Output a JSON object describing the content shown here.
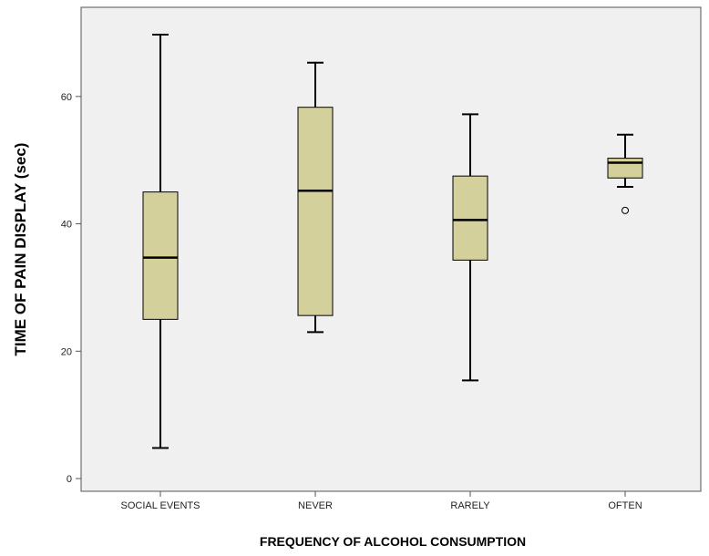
{
  "chart_data": {
    "type": "boxplot",
    "title": "",
    "xlabel": "FREQUENCY OF ALCOHOL CONSUMPTION",
    "ylabel": "TIME OF PAIN DISPLAY (sec)",
    "ylim": [
      -2,
      74
    ],
    "yticks": [
      0,
      20,
      40,
      60
    ],
    "categories": [
      "SOCIAL EVENTS",
      "NEVER",
      "RARELY",
      "OFTEN"
    ],
    "boxes": [
      {
        "category": "SOCIAL EVENTS",
        "whisker_low": 4.8,
        "q1": 25.0,
        "median": 34.7,
        "q3": 45.0,
        "whisker_high": 69.7,
        "outliers": []
      },
      {
        "category": "NEVER",
        "whisker_low": 23.0,
        "q1": 25.6,
        "median": 45.2,
        "q3": 58.3,
        "whisker_high": 65.3,
        "outliers": []
      },
      {
        "category": "RARELY",
        "whisker_low": 15.4,
        "q1": 34.3,
        "median": 40.6,
        "q3": 47.5,
        "whisker_high": 57.2,
        "outliers": []
      },
      {
        "category": "OFTEN",
        "whisker_low": 45.8,
        "q1": 47.2,
        "median": 49.6,
        "q3": 50.3,
        "whisker_high": 54.0,
        "outliers": [
          42.1
        ]
      }
    ],
    "colors": {
      "box_fill": "#d4d09b",
      "plot_background": "#f0f0f0",
      "line": "#000000",
      "axis": "#555555"
    }
  }
}
